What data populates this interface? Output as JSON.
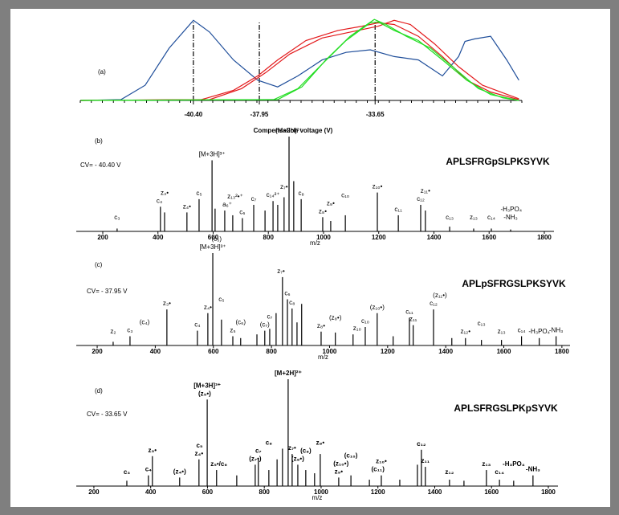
{
  "chart_data": [
    {
      "type": "line",
      "label": "(a)",
      "x_label": "Compensation voltage (V)",
      "xlim": [
        -44.6,
        -28.2
      ],
      "ylim": [
        0,
        100
      ],
      "xticks": [
        {
          "value": -40.4,
          "label": "-40.40"
        },
        {
          "value": -37.95,
          "label": "-37.95"
        },
        {
          "value": -33.65,
          "label": "-33.65"
        }
      ],
      "series": [
        {
          "color": "#1f4e9a",
          "x": [
            -44.58,
            -43.09,
            -42.19,
            -41.3,
            -40.4,
            -39.8,
            -38.91,
            -38.01,
            -37.27,
            -36.52,
            -35.62,
            -34.73,
            -33.83,
            -32.94,
            -32.04,
            -31.15,
            -30.55,
            -30.31,
            -29.95,
            -29.36,
            -28.76,
            -28.31
          ],
          "values": [
            0,
            1,
            18,
            62,
            95,
            81,
            48,
            24,
            16,
            29,
            48,
            57,
            60,
            52,
            48,
            29,
            52,
            70,
            73,
            76,
            48,
            24
          ]
        },
        {
          "color": "#e31a1c",
          "x": [
            -44.58,
            -40.1,
            -38.91,
            -38.01,
            -37.27,
            -36.22,
            -35.03,
            -34.13,
            -33.53,
            -32.94,
            -32.04,
            -31.15,
            -30.25,
            -29.36,
            -28.31
          ],
          "values": [
            0,
            1,
            12,
            29,
            48,
            71,
            83,
            88,
            92,
            90,
            76,
            52,
            24,
            10,
            1
          ]
        },
        {
          "color": "#e31a1c",
          "x": [
            -44.58,
            -39.8,
            -38.61,
            -37.71,
            -36.82,
            -35.62,
            -34.43,
            -33.53,
            -32.94,
            -32.34,
            -31.44,
            -30.55,
            -29.66,
            -28.31
          ],
          "values": [
            0,
            1,
            14,
            33,
            55,
            74,
            82,
            88,
            95,
            90,
            67,
            40,
            18,
            2
          ]
        },
        {
          "color": "#22dd22",
          "x": [
            -44.58,
            -37.42,
            -36.52,
            -35.62,
            -34.73,
            -33.83,
            -33.53,
            -32.94,
            -32.04,
            -31.15,
            -30.25,
            -29.36,
            -28.31
          ],
          "values": [
            0,
            1,
            14,
            43,
            71,
            92,
            93,
            83,
            71,
            48,
            24,
            7,
            0
          ]
        },
        {
          "color": "#22dd22",
          "x": [
            -44.58,
            -37.27,
            -36.37,
            -35.48,
            -34.58,
            -33.68,
            -33.24,
            -32.49,
            -31.59,
            -30.7,
            -29.81,
            -28.91,
            -28.31
          ],
          "values": [
            0,
            1,
            16,
            48,
            76,
            96,
            90,
            76,
            62,
            38,
            14,
            3,
            0
          ]
        }
      ]
    },
    {
      "type": "spectrum",
      "label": "(b)",
      "cv": "CV= - 40.40 V",
      "sequence": "APLSFRGpSLPKSYVK",
      "x_label": "m/z",
      "xlim": [
        104,
        1835
      ],
      "ylim": [
        0,
        100
      ],
      "xticks": [
        200,
        400,
        600,
        800,
        1000,
        1200,
        1400,
        1600,
        1800
      ],
      "color": "#000000",
      "mz": [
        252,
        409,
        424,
        505,
        549,
        596,
        607,
        642,
        671,
        706,
        747,
        788,
        817,
        834,
        857,
        875,
        892,
        919,
        997,
        1026,
        1079,
        1195,
        1271,
        1352,
        1369,
        1457,
        1544,
        1608,
        1678
      ],
      "values": [
        3,
        26,
        20,
        20,
        34,
        75,
        24,
        22,
        17,
        14,
        28,
        22,
        32,
        28,
        36,
        100,
        53,
        34,
        15,
        11,
        17,
        41,
        17,
        28,
        22,
        5,
        3,
        3,
        2
      ],
      "annotations": [
        {
          "text": "c₃",
          "mz": 252
        },
        {
          "text": "c₄",
          "mz": 405
        },
        {
          "text": "z₃•",
          "mz": 424
        },
        {
          "text": "z₄•",
          "mz": 505
        },
        {
          "text": "c₅",
          "mz": 549
        },
        {
          "text": "[M+3H]³⁺",
          "mz": 596
        },
        {
          "text": "a₆⁺",
          "mz": 651
        },
        {
          "text": "z₁₃²•⁺",
          "mz": 680
        },
        {
          "text": "c₆",
          "mz": 706
        },
        {
          "text": "c₇",
          "mz": 747
        },
        {
          "text": "c₁₄²⁺",
          "mz": 817
        },
        {
          "text": "z₇•",
          "mz": 857
        },
        {
          "text": "[M+2H]²⁺",
          "mz": 875
        },
        {
          "text": "c₈",
          "mz": 919
        },
        {
          "text": "z₈•",
          "mz": 997
        },
        {
          "text": "z₉•",
          "mz": 1026
        },
        {
          "text": "c₁₀",
          "mz": 1079
        },
        {
          "text": "z₁₀•",
          "mz": 1195
        },
        {
          "text": "c₁₁",
          "mz": 1271
        },
        {
          "text": "c₁₂",
          "mz": 1352
        },
        {
          "text": "z₁₁•",
          "mz": 1369
        },
        {
          "text": "c₁₃",
          "mz": 1457
        },
        {
          "text": "z₁₃",
          "mz": 1544
        },
        {
          "text": "c₁₄",
          "mz": 1608
        },
        {
          "text": "-NH₃",
          "mz": 1678
        },
        {
          "text": "-H₃PO₄",
          "mz": 1680
        }
      ]
    },
    {
      "type": "spectrum",
      "label": "(c)",
      "cv": "CV= - 37.95 V",
      "sequence": "APLpSFRGSLPKSYVK",
      "x_label": "m/z",
      "xlim": [
        128,
        1828
      ],
      "ylim": [
        0,
        100
      ],
      "xticks": [
        200,
        400,
        600,
        800,
        1000,
        1200,
        1400,
        1600,
        1800
      ],
      "color": "#000000",
      "mz": [
        255,
        313,
        440,
        545,
        581,
        598,
        628,
        667,
        694,
        750,
        777,
        794,
        816,
        838,
        855,
        871,
        888,
        904,
        971,
        1020,
        1081,
        1123,
        1164,
        1219,
        1275,
        1288,
        1358,
        1421,
        1468,
        1523,
        1592,
        1661,
        1722,
        1780
      ],
      "values": [
        4,
        10,
        39,
        16,
        35,
        100,
        28,
        10,
        8,
        12,
        16,
        18,
        35,
        74,
        50,
        40,
        25,
        45,
        15,
        14,
        12,
        20,
        35,
        10,
        30,
        22,
        39,
        8,
        8,
        6,
        6,
        10,
        8,
        10
      ],
      "annotations": [
        {
          "text": "z₂",
          "mz": 255
        },
        {
          "text": "c₃",
          "mz": 313
        },
        {
          "text": "(c₄)",
          "mz": 363
        },
        {
          "text": "z₃•",
          "mz": 440
        },
        {
          "text": "c₄",
          "mz": 545
        },
        {
          "text": "z₄•",
          "mz": 581
        },
        {
          "text": "[M+3H]³⁺",
          "mz": 598
        },
        {
          "text": "(c₅)",
          "mz": 611
        },
        {
          "text": "z₅",
          "mz": 667
        },
        {
          "text": "c₅",
          "mz": 628
        },
        {
          "text": "(c₆)",
          "mz": 694
        },
        {
          "text": "(c₇)",
          "mz": 777
        },
        {
          "text": "c₇",
          "mz": 794
        },
        {
          "text": "z₇•",
          "mz": 833
        },
        {
          "text": "c₆",
          "mz": 855
        },
        {
          "text": "c₈",
          "mz": 871
        },
        {
          "text": "z₈•",
          "mz": 971
        },
        {
          "text": "(z₈•)",
          "mz": 1020
        },
        {
          "text": "z₁₀",
          "mz": 1095
        },
        {
          "text": "c₁₀",
          "mz": 1123
        },
        {
          "text": "(z₁₀•)",
          "mz": 1164
        },
        {
          "text": "c₁₁",
          "mz": 1275
        },
        {
          "text": "z₁₁",
          "mz": 1288
        },
        {
          "text": "c₁₂",
          "mz": 1358
        },
        {
          "text": "(z₁₁•)",
          "mz": 1380
        },
        {
          "text": "z₁₂•",
          "mz": 1468
        },
        {
          "text": "c₁₃",
          "mz": 1523
        },
        {
          "text": "z₁₃",
          "mz": 1592
        },
        {
          "text": "c₁₄",
          "mz": 1661
        },
        {
          "text": "-H₃PO₄",
          "mz": 1722
        },
        {
          "text": "-NH₃",
          "mz": 1780
        }
      ]
    },
    {
      "type": "spectrum",
      "label": "(d)",
      "cv": "CV= - 33.65 V",
      "sequence": "APLSFRGSLPKpSYVK",
      "x_label": "m/z",
      "xlim": [
        138,
        1834
      ],
      "ylim": [
        0,
        100
      ],
      "xticks": [
        200,
        400,
        600,
        800,
        1000,
        1200,
        1400,
        1600,
        1800
      ],
      "color": "#000000",
      "mz": [
        316,
        392,
        406,
        502,
        570,
        599,
        632,
        703,
        768,
        779,
        816,
        845,
        864,
        884,
        898,
        918,
        946,
        977,
        997,
        1062,
        1105,
        1170,
        1212,
        1277,
        1339,
        1353,
        1367,
        1452,
        1503,
        1582,
        1628,
        1678,
        1746
      ],
      "values": [
        5,
        10,
        28,
        8,
        25,
        81,
        15,
        10,
        20,
        25,
        15,
        25,
        35,
        100,
        30,
        20,
        15,
        12,
        30,
        8,
        10,
        6,
        10,
        6,
        20,
        34,
        18,
        6,
        5,
        15,
        6,
        5,
        10
      ],
      "annotations": [
        {
          "text": "c₃",
          "mz": 316
        },
        {
          "text": "c₄",
          "mz": 392
        },
        {
          "text": "z₃•",
          "mz": 406
        },
        {
          "text": "(z₄•)",
          "mz": 502
        },
        {
          "text": "z₄•",
          "mz": 570
        },
        {
          "text": "c₅",
          "mz": 572
        },
        {
          "text": "(z₅•)",
          "mz": 590
        },
        {
          "text": "[M+3H]³⁺",
          "mz": 599
        },
        {
          "text": "z₅•/c₆",
          "mz": 640
        },
        {
          "text": "(z₇•)",
          "mz": 768
        },
        {
          "text": "c₇",
          "mz": 779
        },
        {
          "text": "c₈",
          "mz": 816
        },
        {
          "text": "[M+2H]²⁺",
          "mz": 884
        },
        {
          "text": "z₇•",
          "mz": 898
        },
        {
          "text": "(z₈•)",
          "mz": 918
        },
        {
          "text": "(c₈)",
          "mz": 946
        },
        {
          "text": "z₈•",
          "mz": 997
        },
        {
          "text": "z₉•",
          "mz": 1062
        },
        {
          "text": "(z₁₀•)",
          "mz": 1070
        },
        {
          "text": "(c₁₀)",
          "mz": 1105
        },
        {
          "text": "(c₁₁)",
          "mz": 1200
        },
        {
          "text": "z₁₀•",
          "mz": 1212
        },
        {
          "text": "c₁₂",
          "mz": 1353
        },
        {
          "text": "z₁₁",
          "mz": 1367
        },
        {
          "text": "z₁₂",
          "mz": 1452
        },
        {
          "text": "z₁₃",
          "mz": 1582
        },
        {
          "text": "c₁₄",
          "mz": 1628
        },
        {
          "text": "-H₃PO₄",
          "mz": 1678
        },
        {
          "text": "-NH₃",
          "mz": 1746
        }
      ]
    }
  ]
}
